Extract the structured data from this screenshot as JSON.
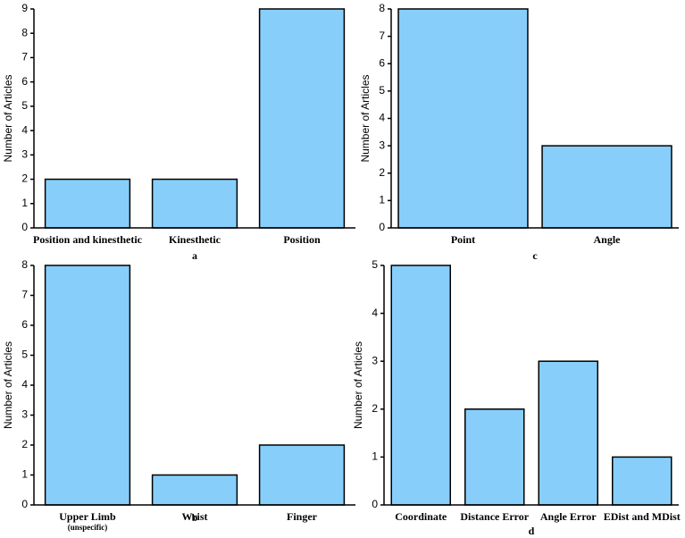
{
  "chart_data": [
    {
      "type": "bar",
      "caption": "a",
      "ylabel": "Number of Articles",
      "categories": [
        "Position and kinesthetic",
        "Kinesthetic",
        "Position"
      ],
      "values": [
        2,
        2,
        9
      ],
      "color": "#87cefa",
      "ylim": [
        0,
        9
      ],
      "yticks": [
        0,
        1,
        2,
        3,
        4,
        5,
        6,
        7,
        8,
        9
      ]
    },
    {
      "type": "bar",
      "caption": "c",
      "ylabel": "Number of Articles",
      "categories": [
        "Point",
        "Angle"
      ],
      "values": [
        8,
        3
      ],
      "color": "#87cefa",
      "ylim": [
        0,
        8
      ],
      "yticks": [
        0,
        1,
        2,
        3,
        4,
        5,
        6,
        7,
        8
      ]
    },
    {
      "type": "bar",
      "caption": "b",
      "ylabel": "Number of Articles",
      "categories": [
        "Upper Limb",
        "Wrist",
        "Finger"
      ],
      "sublabels": [
        "(unspecific)",
        null,
        null
      ],
      "values": [
        8,
        1,
        2
      ],
      "color": "#87cefa",
      "ylim": [
        0,
        8
      ],
      "yticks": [
        0,
        1,
        2,
        3,
        4,
        5,
        6,
        7,
        8
      ]
    },
    {
      "type": "bar",
      "caption": "d",
      "ylabel": "Number of Articles",
      "categories": [
        "Coordinate",
        "Distance Error",
        "Angle Error",
        "EDist and MDist"
      ],
      "values": [
        5,
        2,
        3,
        1
      ],
      "color": "#87cefa",
      "ylim": [
        0,
        5
      ],
      "yticks": [
        0,
        1,
        2,
        3,
        4,
        5
      ]
    }
  ]
}
